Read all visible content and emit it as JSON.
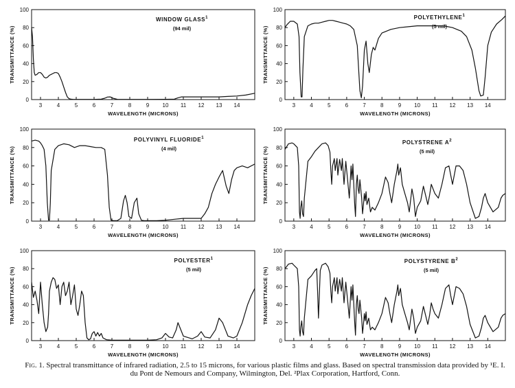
{
  "chart_data": [
    {
      "type": "line",
      "title": "WINDOW GLASS",
      "superscript": "1",
      "thickness": "(94 mil)",
      "xlabel": "WAVELENGTH (MICRONS)",
      "ylabel": "TRANSMITTANCE (%)",
      "xlim": [
        2.5,
        15
      ],
      "ylim": [
        0,
        100
      ],
      "xticks": [
        3,
        4,
        5,
        6,
        7,
        8,
        9,
        10,
        11,
        12,
        13,
        14
      ],
      "yticks": [
        0,
        20,
        40,
        60,
        80,
        100
      ],
      "x": [
        2.5,
        2.55,
        2.6,
        2.65,
        2.7,
        2.8,
        2.9,
        3.0,
        3.1,
        3.2,
        3.3,
        3.4,
        3.5,
        3.6,
        3.7,
        3.8,
        3.9,
        4.0,
        4.1,
        4.2,
        4.3,
        4.4,
        4.5,
        4.6,
        4.7,
        4.8,
        5.0,
        5.5,
        6.0,
        6.4,
        6.6,
        6.75,
        6.9,
        7.05,
        7.3,
        8.0,
        9.0,
        10.0,
        10.5,
        10.7,
        10.9,
        11.5,
        12.0,
        12.5,
        13.0,
        13.5,
        14.0,
        14.5,
        15.0
      ],
      "y": [
        80,
        70,
        45,
        30,
        27,
        28,
        30,
        30,
        28,
        25,
        24,
        25,
        27,
        28,
        29,
        30,
        30,
        29,
        25,
        20,
        14,
        8,
        3,
        1,
        0.5,
        0.3,
        0.2,
        0.2,
        0.2,
        0.5,
        1.5,
        2.8,
        3,
        1.5,
        0.3,
        0.2,
        0.2,
        0.3,
        0.5,
        2,
        3,
        3,
        3,
        3,
        3,
        3.5,
        4,
        5,
        7
      ]
    },
    {
      "type": "line",
      "title": "POLYETHYLENE",
      "superscript": "1",
      "thickness": "(5 mil)",
      "xlabel": "WAVELENGTH (MICRONS)",
      "ylabel": "TRANSMITTANCE (%)",
      "xlim": [
        2.5,
        15
      ],
      "ylim": [
        0,
        100
      ],
      "xticks": [
        3,
        4,
        5,
        6,
        7,
        8,
        9,
        10,
        11,
        12,
        13,
        14
      ],
      "yticks": [
        0,
        20,
        40,
        60,
        80,
        100
      ],
      "x": [
        2.5,
        2.6,
        2.7,
        2.8,
        3.0,
        3.2,
        3.3,
        3.35,
        3.42,
        3.47,
        3.52,
        3.6,
        3.8,
        4.0,
        4.2,
        4.4,
        4.6,
        4.8,
        5.0,
        5.2,
        5.4,
        5.6,
        5.8,
        6.0,
        6.2,
        6.4,
        6.6,
        6.75,
        6.83,
        6.9,
        7.0,
        7.1,
        7.2,
        7.28,
        7.4,
        7.5,
        7.6,
        7.8,
        8.0,
        8.5,
        9.0,
        9.5,
        10.0,
        10.5,
        11.0,
        11.5,
        12.0,
        12.5,
        12.8,
        13.1,
        13.3,
        13.5,
        13.6,
        13.75,
        13.85,
        14.0,
        14.2,
        14.5,
        14.8,
        15.0
      ],
      "y": [
        80,
        83,
        85,
        87,
        87,
        84,
        70,
        30,
        3,
        3,
        35,
        70,
        82,
        84,
        85,
        85,
        86,
        87,
        88,
        88,
        87,
        86,
        85,
        84,
        82,
        78,
        60,
        10,
        2,
        15,
        55,
        65,
        40,
        30,
        50,
        58,
        55,
        68,
        74,
        78,
        80,
        81,
        82,
        82,
        82,
        82,
        80,
        76,
        70,
        55,
        35,
        10,
        4,
        5,
        25,
        60,
        75,
        84,
        89,
        93
      ]
    },
    {
      "type": "line",
      "title": "POLYVINYL FLUORIDE",
      "superscript": "1",
      "thickness": "(4 mil)",
      "xlabel": "WAVELENGTH (MICRONS)",
      "ylabel": "TRANSMITTANCE (%)",
      "xlim": [
        2.5,
        15
      ],
      "ylim": [
        0,
        100
      ],
      "xticks": [
        3,
        4,
        5,
        6,
        7,
        8,
        9,
        10,
        11,
        12,
        13,
        14
      ],
      "yticks": [
        0,
        20,
        40,
        60,
        80,
        100
      ],
      "x": [
        2.5,
        2.7,
        2.9,
        3.0,
        3.1,
        3.2,
        3.3,
        3.38,
        3.45,
        3.5,
        3.55,
        3.6,
        3.8,
        4.0,
        4.3,
        4.6,
        4.9,
        5.2,
        5.5,
        5.8,
        6.1,
        6.4,
        6.6,
        6.75,
        6.85,
        6.95,
        7.1,
        7.3,
        7.5,
        7.65,
        7.75,
        7.85,
        7.95,
        8.1,
        8.25,
        8.4,
        8.5,
        8.65,
        8.8,
        9.0,
        9.5,
        10.0,
        10.5,
        11.0,
        11.5,
        12.0,
        12.2,
        12.4,
        12.6,
        12.8,
        13.0,
        13.2,
        13.4,
        13.55,
        13.7,
        13.85,
        14.0,
        14.3,
        14.6,
        15.0
      ],
      "y": [
        87,
        88,
        87,
        85,
        82,
        78,
        60,
        20,
        1,
        1,
        20,
        55,
        78,
        82,
        84,
        83,
        80,
        82,
        82,
        81,
        80,
        80,
        78,
        50,
        15,
        1,
        0.5,
        0.5,
        3,
        22,
        28,
        20,
        5,
        3,
        20,
        25,
        8,
        1,
        0.5,
        0.5,
        0.5,
        1,
        2,
        3,
        3,
        3,
        8,
        15,
        30,
        40,
        48,
        55,
        38,
        30,
        45,
        55,
        58,
        60,
        58,
        62
      ]
    },
    {
      "type": "line",
      "title": "POLYSTRENE A",
      "superscript": "2",
      "thickness": "(5 mil)",
      "xlabel": "WAVELENGTH (MICRONS)",
      "ylabel": "TRANSMITTANCE (%)",
      "xlim": [
        2.5,
        15
      ],
      "ylim": [
        0,
        100
      ],
      "xticks": [
        3,
        4,
        5,
        6,
        7,
        8,
        9,
        10,
        11,
        12,
        13,
        14
      ],
      "yticks": [
        0,
        20,
        40,
        60,
        80,
        100
      ],
      "x": [
        2.5,
        2.7,
        2.9,
        3.0,
        3.2,
        3.28,
        3.32,
        3.36,
        3.4,
        3.45,
        3.5,
        3.55,
        3.6,
        3.8,
        4.0,
        4.2,
        4.4,
        4.6,
        4.8,
        4.95,
        5.05,
        5.1,
        5.15,
        5.2,
        5.3,
        5.35,
        5.45,
        5.5,
        5.6,
        5.7,
        5.75,
        5.85,
        5.95,
        6.05,
        6.15,
        6.25,
        6.3,
        6.35,
        6.45,
        6.5,
        6.55,
        6.6,
        6.65,
        6.7,
        6.75,
        6.85,
        6.9,
        6.95,
        7.0,
        7.05,
        7.1,
        7.15,
        7.25,
        7.35,
        7.45,
        7.6,
        7.8,
        8.0,
        8.2,
        8.35,
        8.45,
        8.55,
        8.7,
        8.85,
        8.9,
        8.95,
        9.05,
        9.15,
        9.3,
        9.45,
        9.55,
        9.7,
        9.8,
        9.9,
        10.0,
        10.2,
        10.35,
        10.45,
        10.6,
        10.7,
        10.8,
        10.9,
        11.0,
        11.2,
        11.4,
        11.6,
        11.8,
        11.9,
        12.0,
        12.2,
        12.4,
        12.6,
        12.8,
        13.0,
        13.3,
        13.5,
        13.65,
        13.75,
        13.85,
        14.0,
        14.3,
        14.6,
        14.75,
        14.85,
        15.0
      ],
      "y": [
        78,
        84,
        85,
        84,
        80,
        60,
        10,
        3,
        15,
        22,
        8,
        5,
        25,
        65,
        70,
        76,
        80,
        84,
        85,
        82,
        75,
        55,
        40,
        60,
        68,
        55,
        68,
        50,
        67,
        55,
        68,
        40,
        65,
        45,
        25,
        60,
        45,
        62,
        20,
        5,
        40,
        50,
        35,
        30,
        45,
        25,
        8,
        18,
        30,
        22,
        32,
        18,
        25,
        10,
        15,
        12,
        20,
        30,
        48,
        42,
        30,
        20,
        40,
        55,
        62,
        50,
        58,
        40,
        30,
        20,
        10,
        35,
        25,
        5,
        15,
        22,
        38,
        30,
        18,
        28,
        40,
        35,
        30,
        25,
        40,
        58,
        60,
        50,
        40,
        60,
        60,
        55,
        40,
        20,
        3,
        5,
        15,
        25,
        30,
        20,
        10,
        15,
        25,
        28,
        30
      ]
    },
    {
      "type": "line",
      "title": "POLYESTER",
      "superscript": "1",
      "thickness": "(5 mil)",
      "xlabel": "WAVELENGTH (MICRONS)",
      "ylabel": "TRANSMITTANCE (%)",
      "xlim": [
        2.5,
        15
      ],
      "ylim": [
        0,
        100
      ],
      "xticks": [
        3,
        4,
        5,
        6,
        7,
        8,
        9,
        10,
        11,
        12,
        13,
        14
      ],
      "yticks": [
        0,
        20,
        40,
        60,
        80,
        100
      ],
      "x": [
        2.5,
        2.6,
        2.7,
        2.8,
        2.9,
        3.0,
        3.1,
        3.2,
        3.3,
        3.4,
        3.45,
        3.5,
        3.6,
        3.7,
        3.8,
        3.9,
        4.0,
        4.1,
        4.2,
        4.3,
        4.4,
        4.5,
        4.6,
        4.7,
        4.8,
        4.9,
        5.0,
        5.1,
        5.2,
        5.3,
        5.4,
        5.5,
        5.6,
        5.7,
        5.8,
        5.9,
        6.0,
        6.1,
        6.2,
        6.3,
        6.4,
        6.5,
        6.7,
        7.0,
        7.5,
        8.0,
        8.5,
        9.0,
        9.5,
        9.8,
        10.0,
        10.2,
        10.4,
        10.6,
        10.7,
        10.8,
        11.0,
        11.5,
        11.8,
        12.0,
        12.2,
        12.5,
        12.8,
        13.0,
        13.2,
        13.5,
        13.8,
        14.0,
        14.3,
        14.6,
        14.8,
        15.0
      ],
      "y": [
        65,
        48,
        55,
        45,
        30,
        65,
        40,
        20,
        10,
        15,
        30,
        55,
        65,
        70,
        68,
        58,
        62,
        40,
        60,
        65,
        50,
        55,
        65,
        40,
        50,
        62,
        35,
        28,
        40,
        55,
        50,
        20,
        3,
        1,
        2,
        8,
        10,
        5,
        9,
        5,
        8,
        3,
        1,
        0.5,
        0.5,
        0.5,
        0.5,
        0.5,
        1,
        3,
        8,
        4,
        3,
        12,
        20,
        15,
        5,
        2,
        5,
        10,
        4,
        3,
        12,
        25,
        20,
        5,
        3,
        5,
        20,
        40,
        50,
        58
      ]
    },
    {
      "type": "line",
      "title": "POLYSTYRENE B",
      "superscript": "2",
      "thickness": "(5 mil)",
      "xlabel": "WAVELENGTH (MICRONS)",
      "ylabel": "TRANSMITTANCE (%)",
      "xlim": [
        2.5,
        15
      ],
      "ylim": [
        0,
        100
      ],
      "xticks": [
        3,
        4,
        5,
        6,
        7,
        8,
        9,
        10,
        11,
        12,
        13,
        14
      ],
      "yticks": [
        0,
        20,
        40,
        60,
        80,
        100
      ],
      "x": [
        2.5,
        2.7,
        2.9,
        3.0,
        3.2,
        3.28,
        3.32,
        3.36,
        3.4,
        3.45,
        3.5,
        3.55,
        3.6,
        3.8,
        4.0,
        4.2,
        4.3,
        4.35,
        4.4,
        4.5,
        4.6,
        4.8,
        4.95,
        5.05,
        5.1,
        5.15,
        5.2,
        5.3,
        5.35,
        5.45,
        5.5,
        5.6,
        5.7,
        5.75,
        5.85,
        5.95,
        6.05,
        6.15,
        6.25,
        6.3,
        6.35,
        6.45,
        6.5,
        6.55,
        6.6,
        6.65,
        6.7,
        6.75,
        6.85,
        6.9,
        6.95,
        7.0,
        7.05,
        7.1,
        7.15,
        7.25,
        7.35,
        7.45,
        7.6,
        7.8,
        8.0,
        8.2,
        8.35,
        8.45,
        8.55,
        8.7,
        8.85,
        8.9,
        8.95,
        9.05,
        9.15,
        9.3,
        9.45,
        9.55,
        9.7,
        9.8,
        9.9,
        10.0,
        10.2,
        10.35,
        10.45,
        10.6,
        10.7,
        10.8,
        10.9,
        11.0,
        11.2,
        11.4,
        11.6,
        11.8,
        11.9,
        12.0,
        12.2,
        12.4,
        12.6,
        12.8,
        13.0,
        13.3,
        13.5,
        13.65,
        13.75,
        13.85,
        14.0,
        14.3,
        14.6,
        14.75,
        14.85,
        15.0
      ],
      "y": [
        80,
        85,
        86,
        84,
        80,
        60,
        12,
        5,
        15,
        22,
        10,
        6,
        25,
        68,
        72,
        78,
        80,
        55,
        25,
        78,
        84,
        86,
        82,
        75,
        55,
        42,
        60,
        70,
        55,
        70,
        52,
        68,
        55,
        70,
        42,
        65,
        45,
        25,
        60,
        45,
        62,
        22,
        6,
        40,
        50,
        35,
        30,
        45,
        25,
        8,
        18,
        30,
        22,
        32,
        18,
        25,
        12,
        15,
        12,
        20,
        30,
        48,
        42,
        30,
        20,
        40,
        55,
        62,
        50,
        58,
        40,
        30,
        20,
        12,
        35,
        25,
        8,
        15,
        22,
        38,
        30,
        18,
        28,
        42,
        35,
        30,
        25,
        40,
        58,
        62,
        50,
        40,
        60,
        58,
        52,
        38,
        18,
        3,
        5,
        15,
        25,
        28,
        20,
        10,
        15,
        25,
        28,
        30
      ]
    }
  ],
  "caption": {
    "label": "Fig. 1.",
    "text": "Spectral transmittance of infrared radiation, 2.5 to 15 microns, for various plastic films and glass. Based on spectral transmission data provided by ¹E. I. du Pont de Nemours and Company, Wilmington, Del. ²Plax Corporation, Hartford, Conn."
  }
}
